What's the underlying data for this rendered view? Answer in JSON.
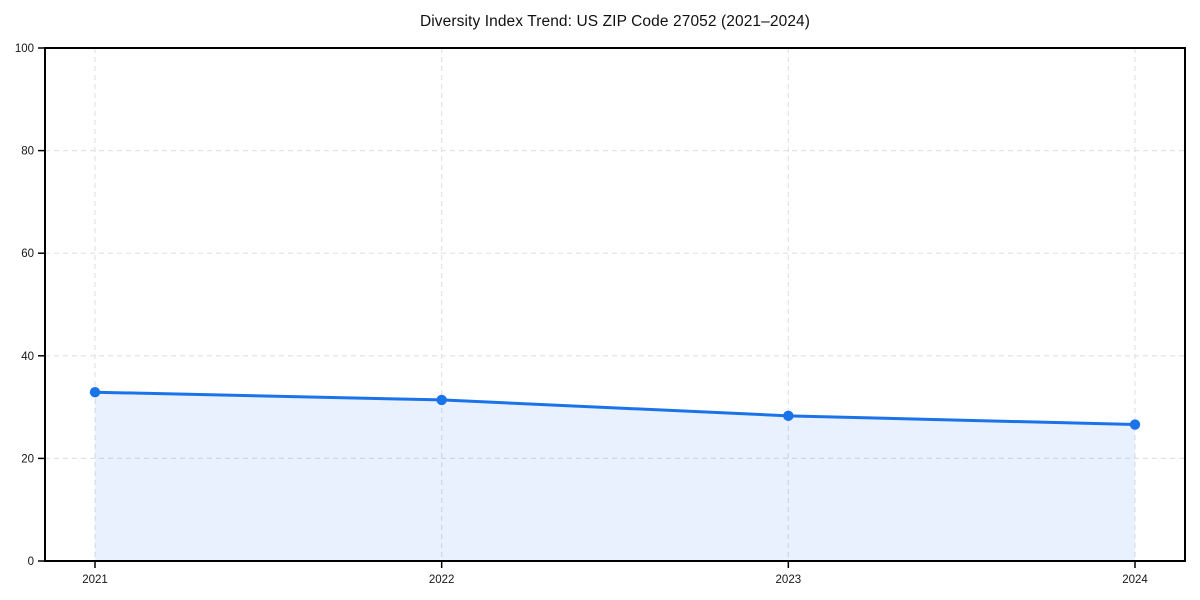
{
  "chart_data": {
    "type": "line",
    "title": "Diversity Index Trend: US ZIP Code 27052 (2021–2024)",
    "x": [
      "2021",
      "2022",
      "2023",
      "2024"
    ],
    "series": [
      {
        "name": "Diversity Index",
        "values": [
          32.9,
          31.4,
          28.3,
          26.6
        ]
      }
    ],
    "xlabel": "",
    "ylabel": "",
    "ylim": [
      0,
      100
    ],
    "yticks": [
      0,
      20,
      40,
      60,
      80,
      100
    ],
    "grid": "dashed, horizontal and vertical",
    "legend_position": "none",
    "marker": "circle",
    "area_fill": true
  },
  "colors": {
    "line": "#1a73e8",
    "marker": "#1a73e8",
    "area_fill": "rgba(26,115,232,0.10)",
    "grid": "#e2e2e2",
    "axis": "#000000",
    "text": "#161616",
    "background": "#ffffff"
  }
}
